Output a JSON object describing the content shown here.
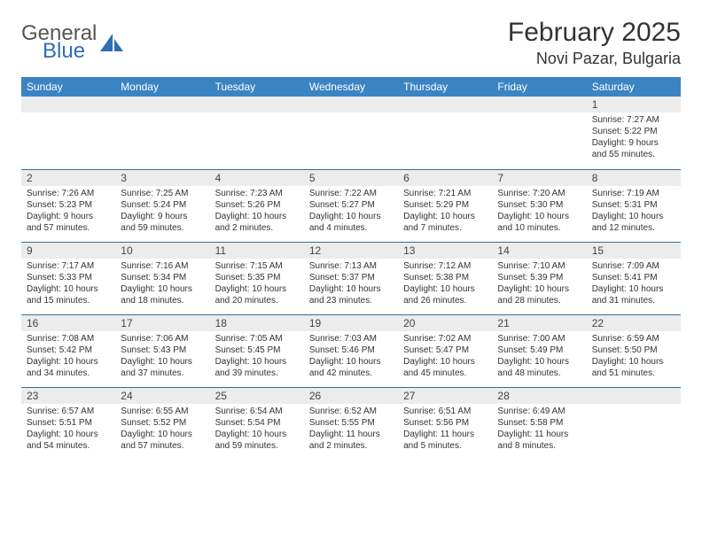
{
  "logo": {
    "text1": "General",
    "text2": "Blue"
  },
  "title": "February 2025",
  "location": "Novi Pazar, Bulgaria",
  "header_bg": "#3b84c4",
  "header_fg": "#ffffff",
  "border_color": "#3b6a99",
  "daynum_bg": "#ececec",
  "weekdays": [
    "Sunday",
    "Monday",
    "Tuesday",
    "Wednesday",
    "Thursday",
    "Friday",
    "Saturday"
  ],
  "weeks": [
    [
      null,
      null,
      null,
      null,
      null,
      null,
      {
        "n": "1",
        "sunrise": "7:27 AM",
        "sunset": "5:22 PM",
        "dl1": "9 hours",
        "dl2": "and 55 minutes."
      }
    ],
    [
      {
        "n": "2",
        "sunrise": "7:26 AM",
        "sunset": "5:23 PM",
        "dl1": "9 hours",
        "dl2": "and 57 minutes."
      },
      {
        "n": "3",
        "sunrise": "7:25 AM",
        "sunset": "5:24 PM",
        "dl1": "9 hours",
        "dl2": "and 59 minutes."
      },
      {
        "n": "4",
        "sunrise": "7:23 AM",
        "sunset": "5:26 PM",
        "dl1": "10 hours",
        "dl2": "and 2 minutes."
      },
      {
        "n": "5",
        "sunrise": "7:22 AM",
        "sunset": "5:27 PM",
        "dl1": "10 hours",
        "dl2": "and 4 minutes."
      },
      {
        "n": "6",
        "sunrise": "7:21 AM",
        "sunset": "5:29 PM",
        "dl1": "10 hours",
        "dl2": "and 7 minutes."
      },
      {
        "n": "7",
        "sunrise": "7:20 AM",
        "sunset": "5:30 PM",
        "dl1": "10 hours",
        "dl2": "and 10 minutes."
      },
      {
        "n": "8",
        "sunrise": "7:19 AM",
        "sunset": "5:31 PM",
        "dl1": "10 hours",
        "dl2": "and 12 minutes."
      }
    ],
    [
      {
        "n": "9",
        "sunrise": "7:17 AM",
        "sunset": "5:33 PM",
        "dl1": "10 hours",
        "dl2": "and 15 minutes."
      },
      {
        "n": "10",
        "sunrise": "7:16 AM",
        "sunset": "5:34 PM",
        "dl1": "10 hours",
        "dl2": "and 18 minutes."
      },
      {
        "n": "11",
        "sunrise": "7:15 AM",
        "sunset": "5:35 PM",
        "dl1": "10 hours",
        "dl2": "and 20 minutes."
      },
      {
        "n": "12",
        "sunrise": "7:13 AM",
        "sunset": "5:37 PM",
        "dl1": "10 hours",
        "dl2": "and 23 minutes."
      },
      {
        "n": "13",
        "sunrise": "7:12 AM",
        "sunset": "5:38 PM",
        "dl1": "10 hours",
        "dl2": "and 26 minutes."
      },
      {
        "n": "14",
        "sunrise": "7:10 AM",
        "sunset": "5:39 PM",
        "dl1": "10 hours",
        "dl2": "and 28 minutes."
      },
      {
        "n": "15",
        "sunrise": "7:09 AM",
        "sunset": "5:41 PM",
        "dl1": "10 hours",
        "dl2": "and 31 minutes."
      }
    ],
    [
      {
        "n": "16",
        "sunrise": "7:08 AM",
        "sunset": "5:42 PM",
        "dl1": "10 hours",
        "dl2": "and 34 minutes."
      },
      {
        "n": "17",
        "sunrise": "7:06 AM",
        "sunset": "5:43 PM",
        "dl1": "10 hours",
        "dl2": "and 37 minutes."
      },
      {
        "n": "18",
        "sunrise": "7:05 AM",
        "sunset": "5:45 PM",
        "dl1": "10 hours",
        "dl2": "and 39 minutes."
      },
      {
        "n": "19",
        "sunrise": "7:03 AM",
        "sunset": "5:46 PM",
        "dl1": "10 hours",
        "dl2": "and 42 minutes."
      },
      {
        "n": "20",
        "sunrise": "7:02 AM",
        "sunset": "5:47 PM",
        "dl1": "10 hours",
        "dl2": "and 45 minutes."
      },
      {
        "n": "21",
        "sunrise": "7:00 AM",
        "sunset": "5:49 PM",
        "dl1": "10 hours",
        "dl2": "and 48 minutes."
      },
      {
        "n": "22",
        "sunrise": "6:59 AM",
        "sunset": "5:50 PM",
        "dl1": "10 hours",
        "dl2": "and 51 minutes."
      }
    ],
    [
      {
        "n": "23",
        "sunrise": "6:57 AM",
        "sunset": "5:51 PM",
        "dl1": "10 hours",
        "dl2": "and 54 minutes."
      },
      {
        "n": "24",
        "sunrise": "6:55 AM",
        "sunset": "5:52 PM",
        "dl1": "10 hours",
        "dl2": "and 57 minutes."
      },
      {
        "n": "25",
        "sunrise": "6:54 AM",
        "sunset": "5:54 PM",
        "dl1": "10 hours",
        "dl2": "and 59 minutes."
      },
      {
        "n": "26",
        "sunrise": "6:52 AM",
        "sunset": "5:55 PM",
        "dl1": "11 hours",
        "dl2": "and 2 minutes."
      },
      {
        "n": "27",
        "sunrise": "6:51 AM",
        "sunset": "5:56 PM",
        "dl1": "11 hours",
        "dl2": "and 5 minutes."
      },
      {
        "n": "28",
        "sunrise": "6:49 AM",
        "sunset": "5:58 PM",
        "dl1": "11 hours",
        "dl2": "and 8 minutes."
      },
      null
    ]
  ],
  "labels": {
    "sunrise": "Sunrise: ",
    "sunset": "Sunset: ",
    "daylight": "Daylight: "
  }
}
